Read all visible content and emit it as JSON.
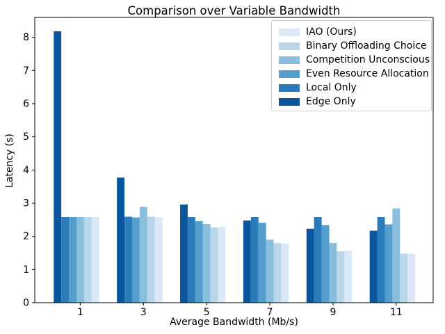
{
  "chart_data": {
    "type": "bar",
    "title": "Comparison over Variable Bandwidth",
    "xlabel": "Average Bandwidth (Mb/s)",
    "ylabel": "Latency (s)",
    "categories": [
      1,
      3,
      5,
      7,
      9,
      11
    ],
    "series": [
      {
        "name": "IAO (Ours)",
        "color": "#dbe9f6",
        "values": [
          2.58,
          2.57,
          2.29,
          1.78,
          1.57,
          1.48
        ]
      },
      {
        "name": "Binary Offloading Choice",
        "color": "#bad6eb",
        "values": [
          2.58,
          2.59,
          2.27,
          1.8,
          1.55,
          1.48
        ]
      },
      {
        "name": "Competition Unconscious",
        "color": "#89bedc",
        "values": [
          2.58,
          2.89,
          2.37,
          1.9,
          1.8,
          2.84
        ]
      },
      {
        "name": "Even Resource Allocation",
        "color": "#539ecd",
        "values": [
          2.58,
          2.57,
          2.46,
          2.41,
          2.34,
          2.36
        ]
      },
      {
        "name": "Local Only",
        "color": "#2b7bba",
        "values": [
          2.58,
          2.59,
          2.58,
          2.58,
          2.58,
          2.58
        ]
      },
      {
        "name": "Edge Only",
        "color": "#0b559f",
        "values": [
          8.18,
          3.77,
          2.96,
          2.48,
          2.23,
          2.17
        ]
      }
    ],
    "bar_draw_order": "reversed-legend (Edge Only leftmost bar in each group, IAO rightmost)",
    "bar_width_data_units": 0.24,
    "xlim": [
      -0.44,
      12.17
    ],
    "ylim": [
      0,
      8.6
    ],
    "yticks": [
      0,
      1,
      2,
      3,
      4,
      5,
      6,
      7,
      8
    ],
    "xticks": [
      1,
      3,
      5,
      7,
      9,
      11
    ],
    "legend_position": "upper right",
    "grid": false
  }
}
